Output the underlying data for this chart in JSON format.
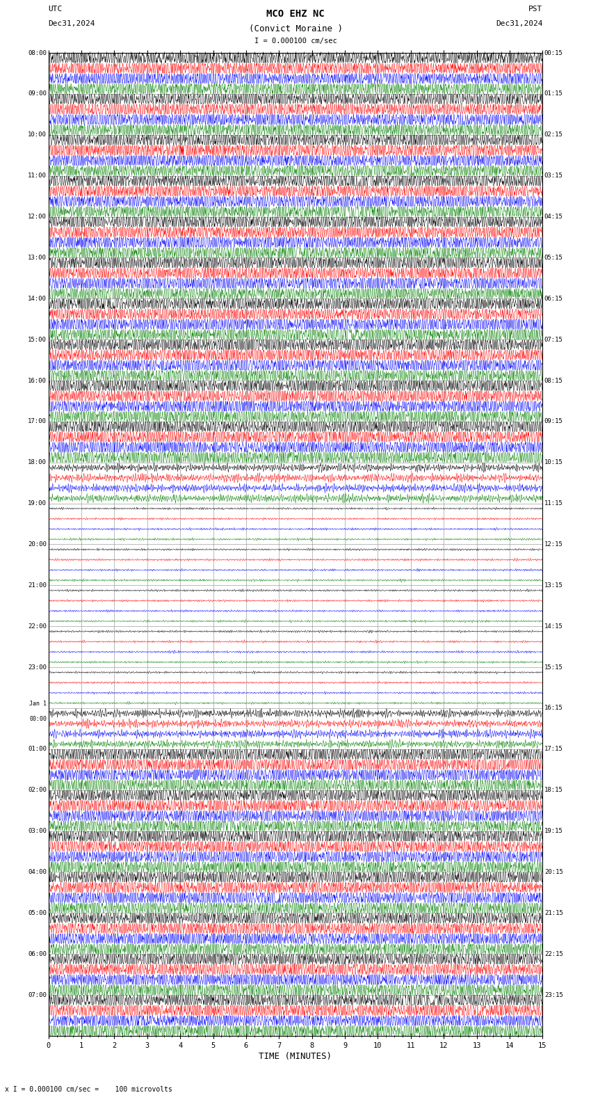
{
  "title_line1": "MCO EHZ NC",
  "title_line2": "(Convict Moraine )",
  "scale_label": "I = 0.000100 cm/sec",
  "utc_label": "UTC",
  "pst_label": "PST",
  "date_left": "Dec31,2024",
  "date_right": "Dec31,2024",
  "xlabel": "TIME (MINUTES)",
  "footer_label": "x I = 0.000100 cm/sec =    100 microvolts",
  "bg_color": "#ffffff",
  "colors": [
    "#000000",
    "#ff0000",
    "#0000ff",
    "#008000"
  ],
  "num_rows": 24,
  "traces_per_row": 4,
  "row_labels_left": [
    "08:00",
    "09:00",
    "10:00",
    "11:00",
    "12:00",
    "13:00",
    "14:00",
    "15:00",
    "16:00",
    "17:00",
    "18:00",
    "19:00",
    "20:00",
    "21:00",
    "22:00",
    "23:00",
    "Jan 1\n00:00",
    "01:00",
    "02:00",
    "03:00",
    "04:00",
    "05:00",
    "06:00",
    "07:00"
  ],
  "row_labels_right": [
    "00:15",
    "01:15",
    "02:15",
    "03:15",
    "04:15",
    "05:15",
    "06:15",
    "07:15",
    "08:15",
    "09:15",
    "10:15",
    "11:15",
    "12:15",
    "13:15",
    "14:15",
    "15:15",
    "16:15",
    "17:15",
    "18:15",
    "19:15",
    "20:15",
    "21:15",
    "22:15",
    "23:15"
  ],
  "xmin": 0,
  "xmax": 15,
  "xticks": [
    0,
    1,
    2,
    3,
    4,
    5,
    6,
    7,
    8,
    9,
    10,
    11,
    12,
    13,
    14,
    15
  ],
  "grid_color": "#888888",
  "font_color": "#000000",
  "quiet_rows": [
    11,
    12,
    13,
    14,
    15
  ],
  "semi_quiet_rows": [
    10,
    16
  ],
  "N": 1500
}
